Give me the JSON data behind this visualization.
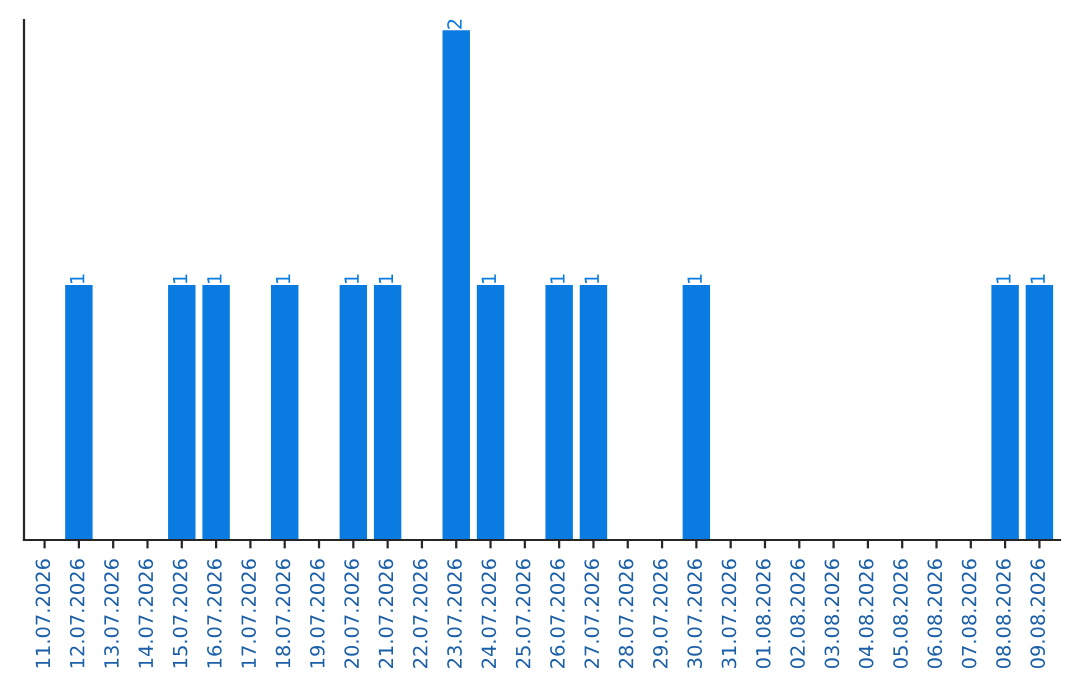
{
  "chart_data": {
    "type": "bar",
    "categories": [
      "11.07.2026",
      "12.07.2026",
      "13.07.2026",
      "14.07.2026",
      "15.07.2026",
      "16.07.2026",
      "17.07.2026",
      "18.07.2026",
      "19.07.2026",
      "20.07.2026",
      "21.07.2026",
      "22.07.2026",
      "23.07.2026",
      "24.07.2026",
      "25.07.2026",
      "26.07.2026",
      "27.07.2026",
      "28.07.2026",
      "29.07.2026",
      "30.07.2026",
      "31.07.2026",
      "01.08.2026",
      "02.08.2026",
      "03.08.2026",
      "04.08.2026",
      "05.08.2026",
      "06.08.2026",
      "07.08.2026",
      "08.08.2026",
      "09.08.2026"
    ],
    "values": [
      0,
      1,
      0,
      0,
      1,
      1,
      0,
      1,
      0,
      1,
      1,
      0,
      2,
      1,
      0,
      1,
      1,
      0,
      0,
      1,
      0,
      0,
      0,
      0,
      0,
      0,
      0,
      0,
      1,
      1
    ],
    "value_labels": [
      null,
      "1",
      null,
      null,
      "1",
      "1",
      null,
      "1",
      null,
      "1",
      "1",
      null,
      "2",
      "1",
      null,
      "1",
      "1",
      null,
      null,
      "1",
      null,
      null,
      null,
      null,
      null,
      null,
      null,
      null,
      "1",
      "1"
    ],
    "color": "#0a7be0",
    "ylim": [
      0,
      2.04
    ],
    "tick_labels": "x",
    "grid": false,
    "legend": false
  }
}
